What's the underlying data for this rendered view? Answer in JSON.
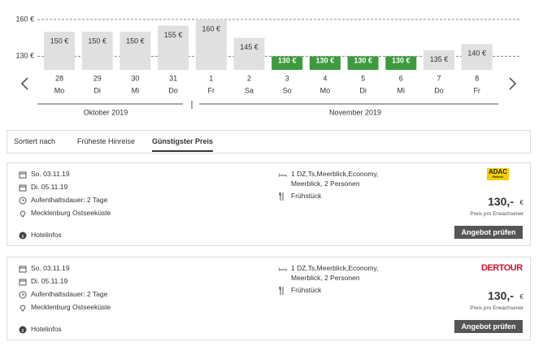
{
  "chart_data": {
    "type": "bar",
    "categories": [
      "28",
      "29",
      "30",
      "31",
      "1",
      "2",
      "3",
      "4",
      "5",
      "6",
      "7",
      "8"
    ],
    "weekdays": [
      "Mo",
      "Di",
      "Mi",
      "Do",
      "Fr",
      "Sa",
      "So",
      "Mo",
      "Di",
      "Mi",
      "Do",
      "Fr"
    ],
    "values": [
      150,
      150,
      150,
      155,
      160,
      145,
      130,
      130,
      130,
      130,
      135,
      140
    ],
    "value_labels": [
      "150 €",
      "150 €",
      "150 €",
      "155 €",
      "160 €",
      "145 €",
      "130 €",
      "130 €",
      "130 €",
      "130 €",
      "135 €",
      "140 €"
    ],
    "colors": [
      "#e0e0e0",
      "#e0e0e0",
      "#e0e0e0",
      "#e0e0e0",
      "#e0e0e0",
      "#e0e0e0",
      "#3d9a3d",
      "#3d9a3d",
      "#3d9a3d",
      "#3d9a3d",
      "#e0e0e0",
      "#e0e0e0"
    ],
    "ylim": [
      119,
      160
    ],
    "yticks": [
      {
        "value": 130,
        "label": "130 €"
      },
      {
        "value": 160,
        "label": "160 €"
      }
    ],
    "months": [
      "Oktober 2019",
      "November 2019"
    ]
  },
  "sort": {
    "label": "Sortiert nach",
    "options": [
      "Früheste Hinreise",
      "Günstigster Preis"
    ]
  },
  "offers": [
    {
      "dates": [
        "So. 03.11.19",
        "Di. 05.11.19"
      ],
      "duration": "Aufenthaltsdauer: 2 Tage",
      "region": "Mecklenburg Ostseeküste",
      "room": [
        "1 DZ,Ts,Meerblick,Economy,",
        "Meerblick, 2 Personen"
      ],
      "board": "Frühstück",
      "operator": [
        "ADAC",
        "Reisen"
      ],
      "price": "130,-",
      "currency": "€",
      "price_note": "Preis pro Erwachsener",
      "button": "Angebot prüfen",
      "info": "Hotelinfos"
    },
    {
      "dates": [
        "So. 03.11.19",
        "Di. 05.11.19"
      ],
      "duration": "Aufenthaltsdauer: 2 Tage",
      "region": "Mecklenburg Ostseeküste",
      "room": [
        "1 DZ,Ts,Meerblick,Economy,",
        "Meerblick, 2 Personen"
      ],
      "board": "Frühstück",
      "operator": [
        "DERTOUR"
      ],
      "price": "130,-",
      "currency": "€",
      "price_note": "Preis pro Erwachsener",
      "button": "Angebot prüfen",
      "info": "Hotelinfos"
    }
  ]
}
